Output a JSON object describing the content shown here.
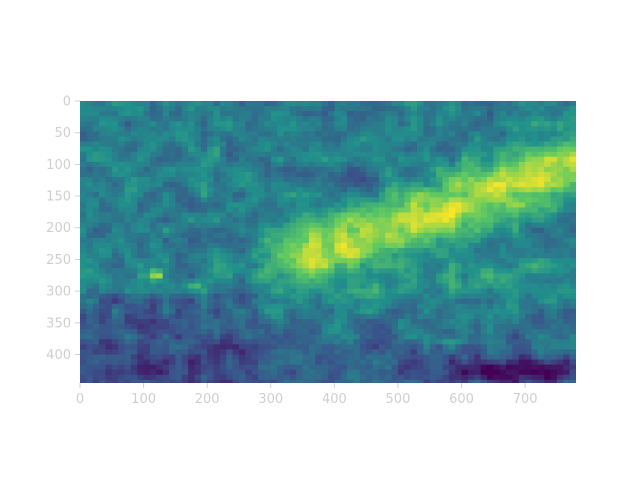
{
  "chart_data": {
    "type": "heatmap",
    "title": "",
    "xlabel": "",
    "ylabel": "",
    "x_range": [
      0,
      780
    ],
    "y_range": [
      0,
      445
    ],
    "y_axis_inverted": true,
    "colormap": "viridis",
    "colormap_stops": [
      "#440154",
      "#3b528b",
      "#21918c",
      "#5ec962",
      "#fde725"
    ],
    "x_ticks": [
      {
        "value": 0,
        "label": "0"
      },
      {
        "value": 100,
        "label": "100"
      },
      {
        "value": 200,
        "label": "200"
      },
      {
        "value": 300,
        "label": "300"
      },
      {
        "value": 400,
        "label": "400"
      },
      {
        "value": 500,
        "label": "500"
      },
      {
        "value": 600,
        "label": "600"
      },
      {
        "value": 700,
        "label": "700"
      }
    ],
    "y_ticks": [
      {
        "value": 0,
        "label": "0"
      },
      {
        "value": 50,
        "label": "50"
      },
      {
        "value": 100,
        "label": "100"
      },
      {
        "value": 150,
        "label": "150"
      },
      {
        "value": 200,
        "label": "200"
      },
      {
        "value": 250,
        "label": "250"
      },
      {
        "value": 300,
        "label": "300"
      },
      {
        "value": 350,
        "label": "350"
      },
      {
        "value": 400,
        "label": "400"
      }
    ],
    "grid": false,
    "legend": "none",
    "features": [
      {
        "kind": "bright-band",
        "x": [
          300,
          780
        ],
        "y": [
          60,
          280
        ],
        "level": 0.9
      },
      {
        "kind": "bright-spot",
        "x": 120,
        "y": 275,
        "level": 0.85
      },
      {
        "kind": "bright-spot",
        "x": 660,
        "y": 100,
        "level": 0.9
      },
      {
        "kind": "dark-trough",
        "x": [
          600,
          780
        ],
        "y": [
          400,
          445
        ],
        "level": 0.05
      },
      {
        "kind": "dark-region",
        "x": [
          0,
          250
        ],
        "y": [
          350,
          445
        ],
        "level": 0.2
      }
    ]
  }
}
